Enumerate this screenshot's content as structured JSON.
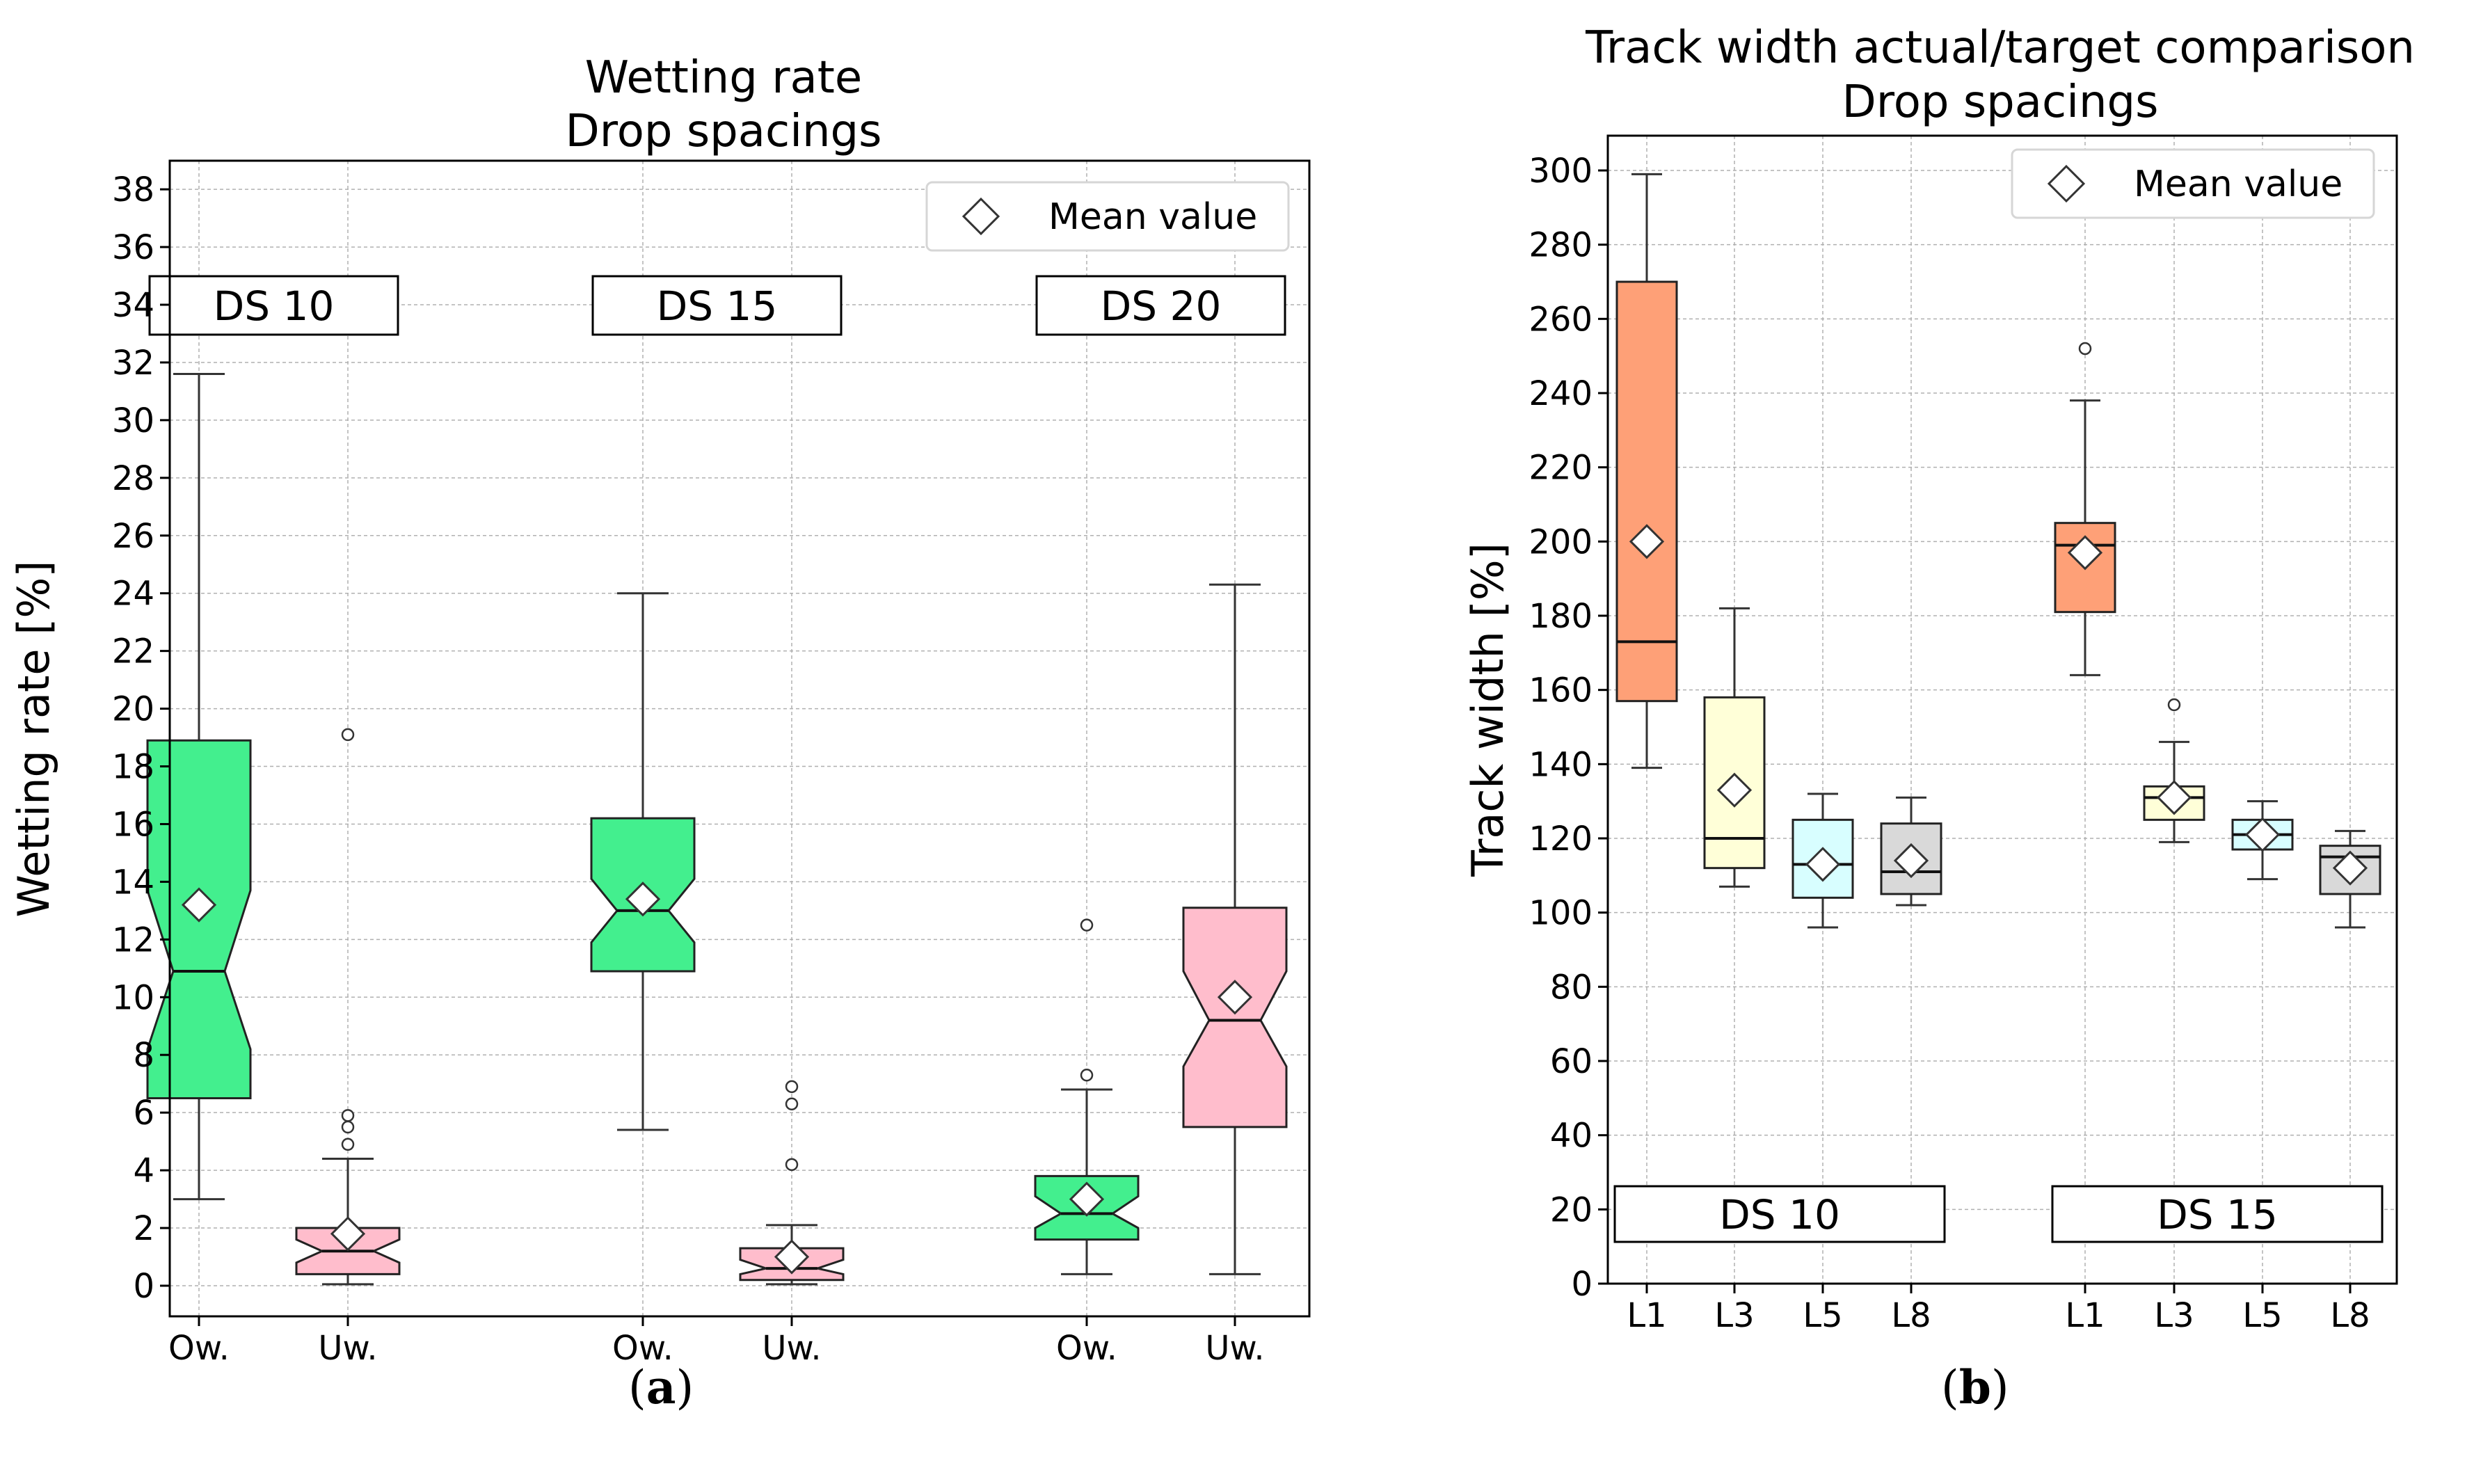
{
  "chart_data": [
    {
      "type": "boxplot",
      "title": "Wetting rate",
      "subtitle": "Drop spacings",
      "xlabel": "",
      "ylabel": "Wetting rate [%]",
      "ylim": [
        -0.7,
        38.9
      ],
      "yticks": [
        0,
        2,
        4,
        6,
        8,
        10,
        12,
        14,
        16,
        18,
        20,
        22,
        24,
        26,
        28,
        30,
        32,
        34,
        36,
        38
      ],
      "grid": true,
      "notched": true,
      "legend": {
        "label": "Mean value",
        "marker": "diamond",
        "position": "top-right"
      },
      "group_labels": [
        "DS 10",
        "DS 15",
        "DS 20"
      ],
      "boxes": [
        {
          "label": "Ow.",
          "group": "DS 10",
          "color": "#43ef8e",
          "whisker_low": 3.0,
          "q1": 6.5,
          "median": 10.9,
          "q3": 18.9,
          "whisker_high": 31.6,
          "notch_low": 8.2,
          "notch_high": 13.7,
          "mean": 13.2,
          "outliers": []
        },
        {
          "label": "Uw.",
          "group": "DS 10",
          "color": "#ffbdcc",
          "whisker_low": 0.05,
          "q1": 0.4,
          "median": 1.2,
          "q3": 2.0,
          "whisker_high": 4.4,
          "notch_low": 0.8,
          "notch_high": 1.6,
          "mean": 1.8,
          "outliers": [
            4.9,
            5.5,
            5.9,
            19.1
          ]
        },
        {
          "label": "Ow.",
          "group": "DS 15",
          "color": "#43ef8e",
          "whisker_low": 5.4,
          "q1": 10.9,
          "median": 13.0,
          "q3": 16.2,
          "whisker_high": 24.0,
          "notch_low": 11.9,
          "notch_high": 14.1,
          "mean": 13.4,
          "outliers": []
        },
        {
          "label": "Uw.",
          "group": "DS 15",
          "color": "#ffbdcc",
          "whisker_low": 0.05,
          "q1": 0.2,
          "median": 0.6,
          "q3": 1.3,
          "whisker_high": 2.1,
          "notch_low": 0.4,
          "notch_high": 0.9,
          "mean": 1.0,
          "outliers": [
            4.2,
            6.3,
            6.9
          ]
        },
        {
          "label": "Ow.",
          "group": "DS 20",
          "color": "#43ef8e",
          "whisker_low": 0.4,
          "q1": 1.6,
          "median": 2.5,
          "q3": 3.8,
          "whisker_high": 6.8,
          "notch_low": 2.0,
          "notch_high": 3.1,
          "mean": 3.0,
          "outliers": [
            7.3,
            12.5
          ]
        },
        {
          "label": "Uw.",
          "group": "DS 20",
          "color": "#ffbdcc",
          "whisker_low": 0.4,
          "q1": 5.5,
          "median": 9.2,
          "q3": 13.1,
          "whisker_high": 24.3,
          "notch_low": 7.6,
          "notch_high": 10.9,
          "mean": 10.0,
          "outliers": []
        }
      ]
    },
    {
      "type": "boxplot",
      "title": "Track width actual/target comparison",
      "subtitle": "Drop spacings",
      "xlabel": "",
      "ylabel": "Track width [%]",
      "ylim": [
        0,
        310
      ],
      "yticks": [
        0,
        20,
        40,
        60,
        80,
        100,
        120,
        140,
        160,
        180,
        200,
        220,
        240,
        260,
        280,
        300
      ],
      "grid": true,
      "notched": false,
      "legend": {
        "label": "Mean value",
        "marker": "diamond",
        "position": "top-right"
      },
      "group_labels": [
        "DS 10",
        "DS 15"
      ],
      "boxes": [
        {
          "label": "L1",
          "group": "DS 10",
          "color": "#fea077",
          "whisker_low": 139,
          "q1": 157,
          "median": 173,
          "q3": 270,
          "whisker_high": 299,
          "mean": 200,
          "outliers": []
        },
        {
          "label": "L3",
          "group": "DS 10",
          "color": "#ffffd8",
          "whisker_low": 107,
          "q1": 112,
          "median": 120,
          "q3": 158,
          "whisker_high": 182,
          "mean": 133,
          "outliers": []
        },
        {
          "label": "L5",
          "group": "DS 10",
          "color": "#d8feff",
          "whisker_low": 96,
          "q1": 104,
          "median": 113,
          "q3": 125,
          "whisker_high": 132,
          "mean": 113,
          "outliers": []
        },
        {
          "label": "L8",
          "group": "DS 10",
          "color": "#d9d9d9",
          "whisker_low": 102,
          "q1": 105,
          "median": 111,
          "q3": 124,
          "whisker_high": 131,
          "mean": 114,
          "outliers": []
        },
        {
          "label": "L1",
          "group": "DS 15",
          "color": "#fea077",
          "whisker_low": 164,
          "q1": 181,
          "median": 199,
          "q3": 205,
          "whisker_high": 238,
          "mean": 197,
          "outliers": [
            252
          ]
        },
        {
          "label": "L3",
          "group": "DS 15",
          "color": "#ffffd8",
          "whisker_low": 119,
          "q1": 125,
          "median": 131,
          "q3": 134,
          "whisker_high": 146,
          "mean": 131,
          "outliers": [
            156
          ]
        },
        {
          "label": "L5",
          "group": "DS 15",
          "color": "#d8feff",
          "whisker_low": 109,
          "q1": 117,
          "median": 121,
          "q3": 125,
          "whisker_high": 130,
          "mean": 121,
          "outliers": []
        },
        {
          "label": "L8",
          "group": "DS 15",
          "color": "#d9d9d9",
          "whisker_low": 96,
          "q1": 105,
          "median": 115,
          "q3": 118,
          "whisker_high": 122,
          "mean": 112,
          "outliers": []
        }
      ]
    }
  ],
  "panel_labels": [
    {
      "open": "(",
      "letter": "a",
      "close": ")"
    },
    {
      "open": "(",
      "letter": "b",
      "close": ")"
    }
  ]
}
